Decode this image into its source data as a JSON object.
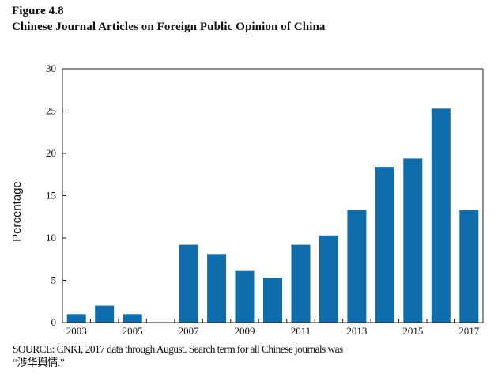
{
  "figure": {
    "number": "Figure 4.8",
    "title": "Chinese Journal Articles on Foreign Public Opinion of China"
  },
  "source": {
    "line1": "SOURCE: CNKI, 2017 data through August. Search term for all Chinese journals was",
    "line2": "“涉华舆情.”"
  },
  "colors": {
    "bar": "#0f6dab",
    "axis": "#222222"
  },
  "chart_data": {
    "type": "bar",
    "ylabel": "Percentage",
    "xlabel": "",
    "ylim": [
      0,
      30
    ],
    "yticks": [
      0,
      5,
      10,
      15,
      20,
      25,
      30
    ],
    "grid": false,
    "categories": [
      "2003",
      "2004",
      "2005",
      "2006",
      "2007",
      "2008",
      "2009",
      "2010",
      "2011",
      "2012",
      "2013",
      "2014",
      "2015",
      "2016",
      "2017"
    ],
    "x_tick_labels": [
      "2003",
      "",
      "2005",
      "",
      "2007",
      "",
      "2009",
      "",
      "2011",
      "",
      "2013",
      "",
      "2015",
      "",
      "2017"
    ],
    "values": [
      1.0,
      2.0,
      1.0,
      0,
      9.2,
      8.1,
      6.1,
      5.3,
      9.2,
      10.3,
      13.3,
      18.4,
      19.4,
      25.3,
      13.3
    ]
  }
}
